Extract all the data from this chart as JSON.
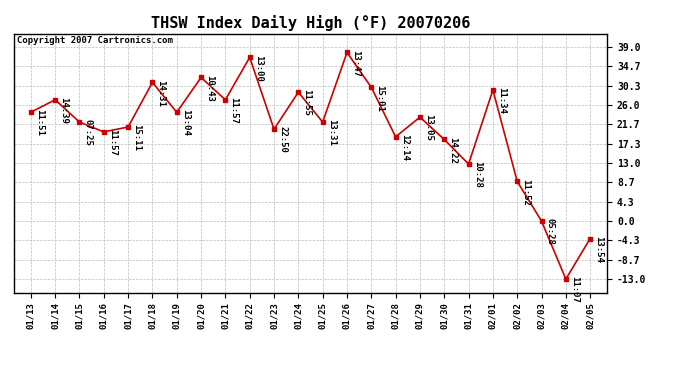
{
  "title": "THSW Index Daily High (°F) 20070206",
  "copyright": "Copyright 2007 Cartronics.com",
  "x_labels": [
    "01/13",
    "01/14",
    "01/15",
    "01/16",
    "01/17",
    "01/18",
    "01/19",
    "01/20",
    "01/21",
    "01/22",
    "01/23",
    "01/24",
    "01/25",
    "01/26",
    "01/27",
    "01/28",
    "01/29",
    "01/30",
    "01/31",
    "02/01",
    "02/02",
    "02/03",
    "02/04",
    "02/05"
  ],
  "y_values": [
    24.4,
    27.2,
    22.2,
    20.0,
    21.1,
    31.1,
    24.4,
    32.2,
    27.2,
    36.7,
    20.6,
    28.9,
    22.2,
    37.8,
    30.0,
    18.9,
    23.3,
    18.3,
    12.8,
    29.4,
    8.9,
    0.0,
    -13.0,
    -3.9
  ],
  "time_labels": [
    "11:51",
    "14:39",
    "07:25",
    "11:57",
    "15:11",
    "14:31",
    "13:04",
    "10:43",
    "11:57",
    "13:00",
    "22:50",
    "11:55",
    "13:31",
    "13:47",
    "15:01",
    "12:14",
    "13:05",
    "14:22",
    "10:28",
    "11:34",
    "11:52",
    "05:28",
    "11:07",
    "13:54"
  ],
  "y_ticks": [
    -13.0,
    -8.7,
    -4.3,
    0.0,
    4.3,
    8.7,
    13.0,
    17.3,
    21.7,
    26.0,
    30.3,
    34.7,
    39.0
  ],
  "ylim": [
    -16.0,
    42.0
  ],
  "line_color": "#cc0000",
  "marker_color": "#cc0000",
  "background_color": "#ffffff",
  "plot_bg_color": "#ffffff",
  "grid_color": "#bbbbbb",
  "title_fontsize": 11,
  "copyright_fontsize": 6.5,
  "label_fontsize": 6.5
}
